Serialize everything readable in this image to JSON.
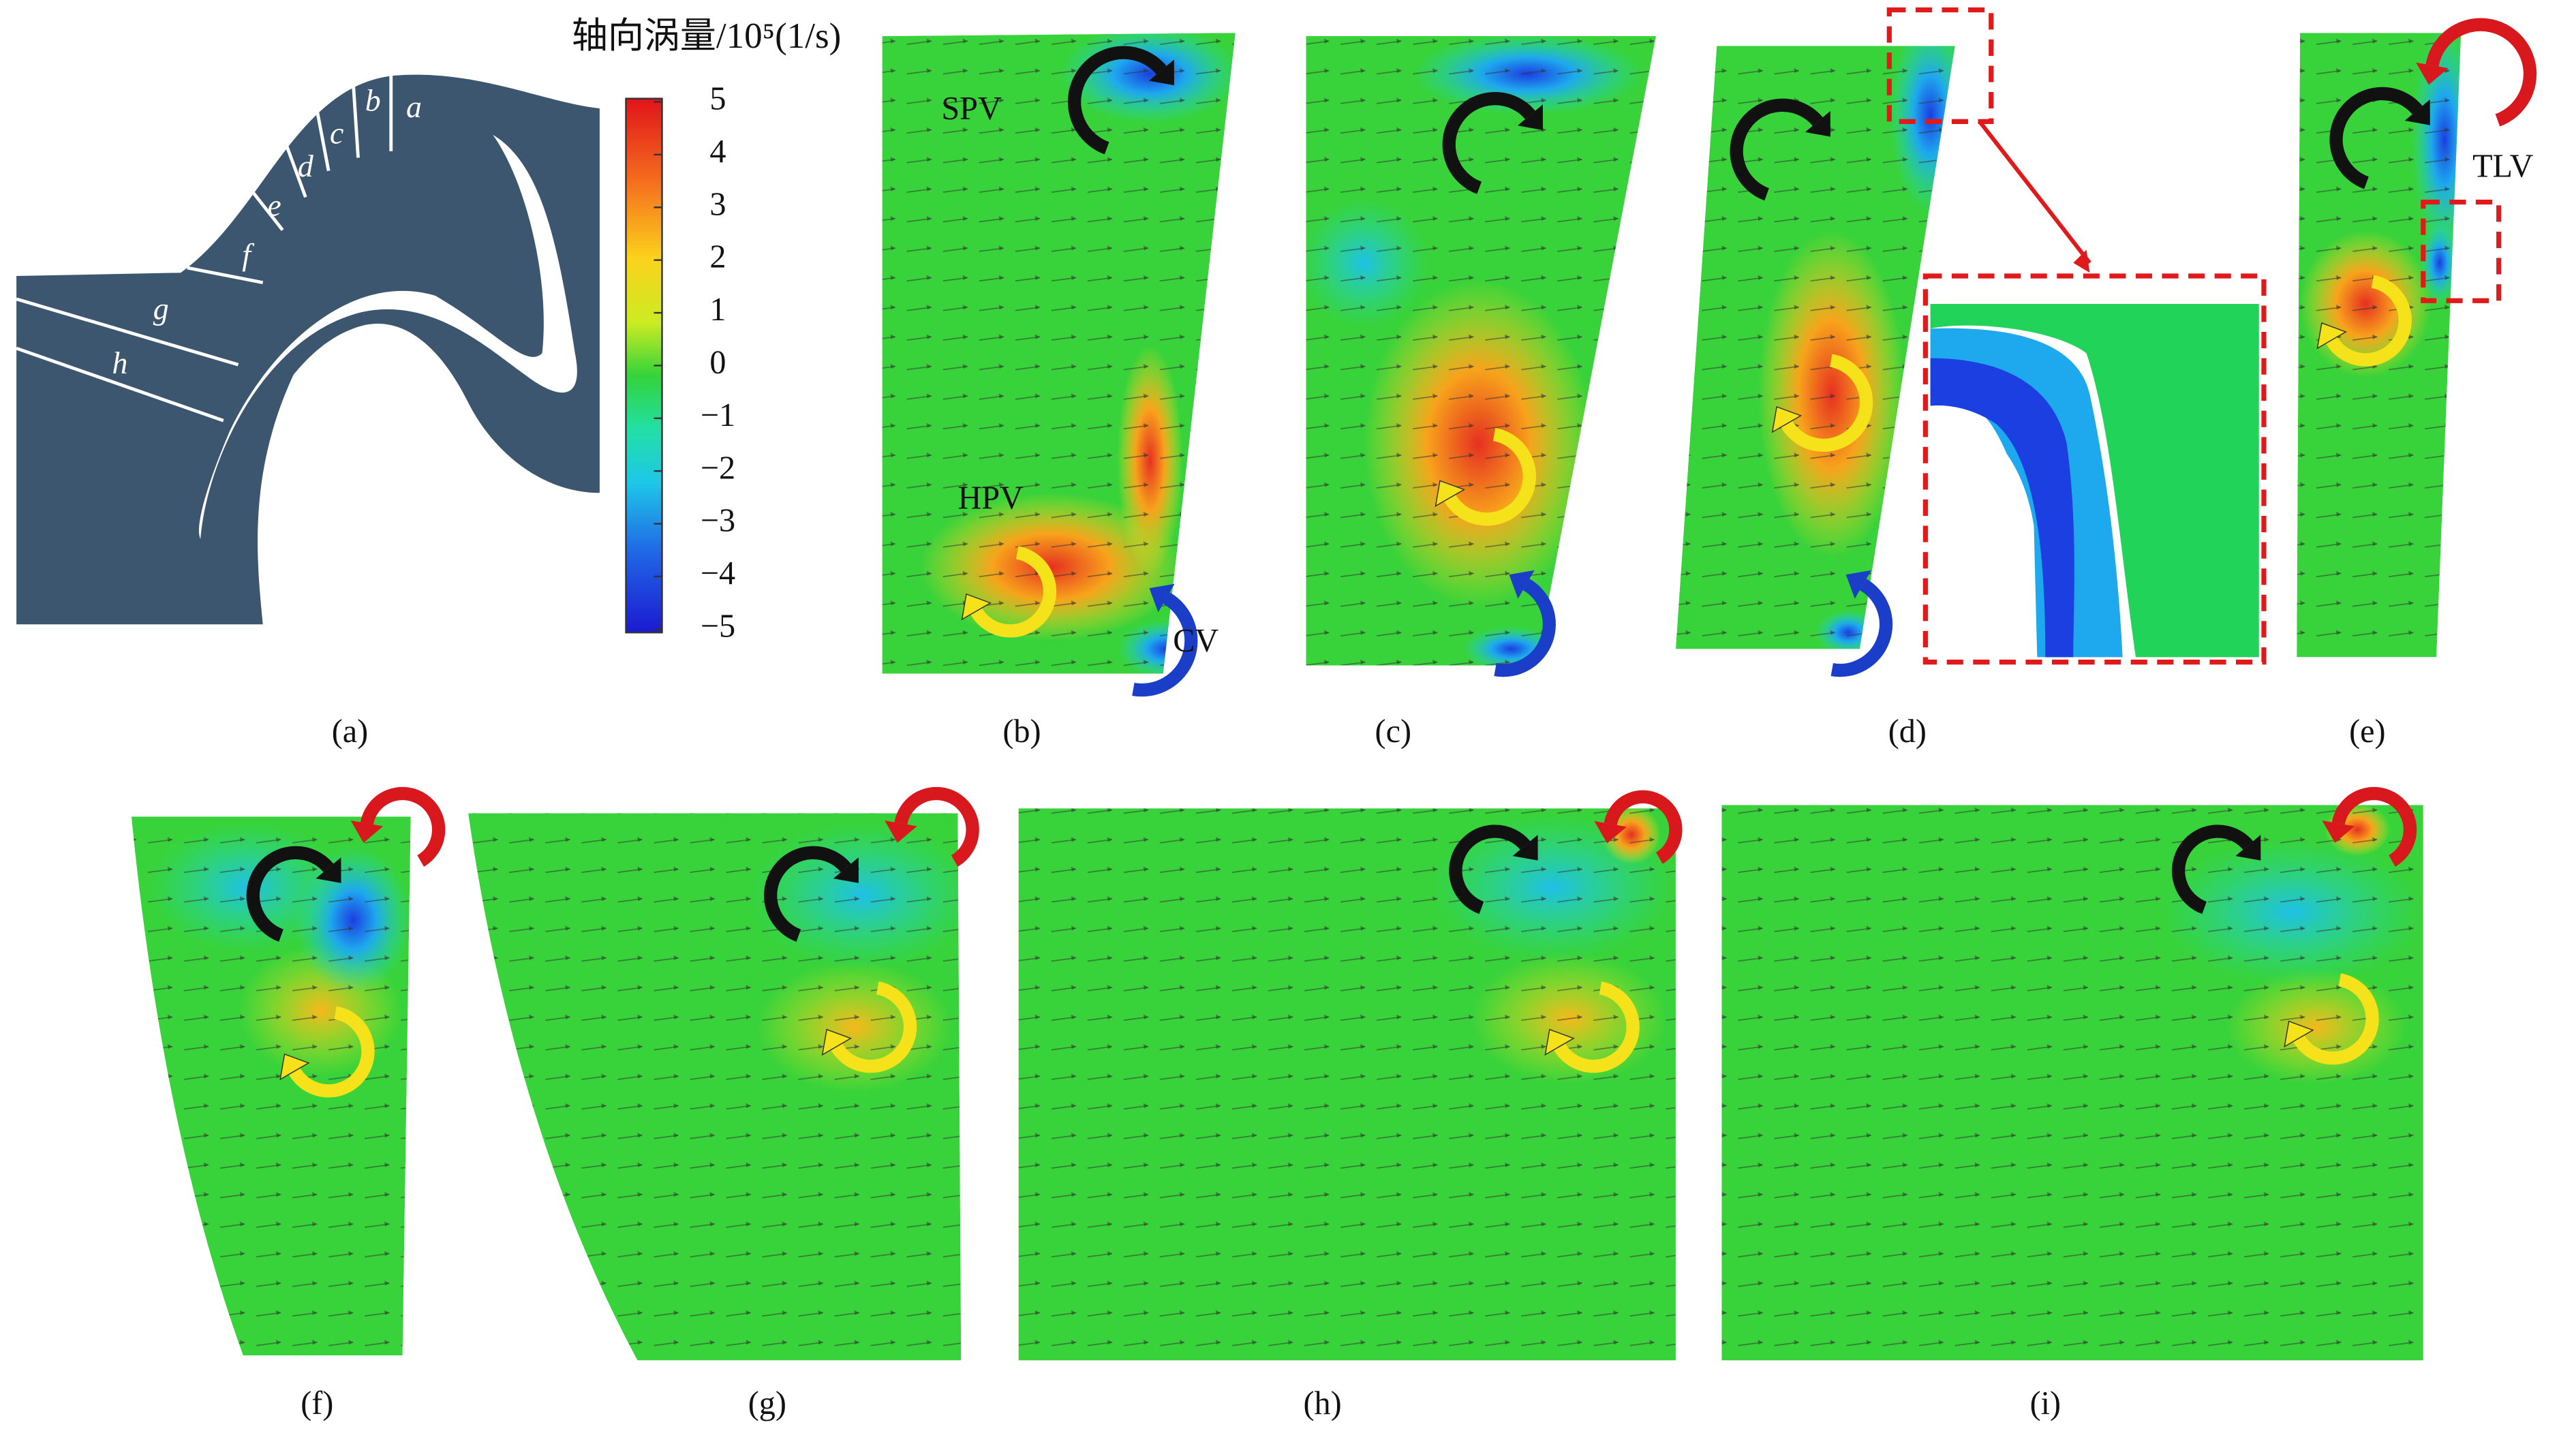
{
  "figure": {
    "colorbar": {
      "title": "轴向涡量/10⁵(1/s)",
      "lim": [
        -5,
        5
      ],
      "ticks": [
        5,
        4,
        3,
        2,
        1,
        0,
        {
          "value": -1,
          "label": "−1"
        },
        {
          "value": -2,
          "label": "−2"
        },
        {
          "value": -3,
          "label": "−3"
        },
        {
          "value": -4,
          "label": "−4"
        },
        {
          "value": -5,
          "label": "−5"
        }
      ]
    },
    "section_labels": [
      "a",
      "b",
      "c",
      "d",
      "e",
      "f",
      "g",
      "h"
    ],
    "vortex_labels": [
      "SPV",
      "HPV",
      "CV",
      "TLV"
    ],
    "panel_captions": [
      "(a)",
      "(b)",
      "(c)",
      "(d)",
      "(e)",
      "(f)",
      "(g)",
      "(h)",
      "(i)"
    ]
  }
}
